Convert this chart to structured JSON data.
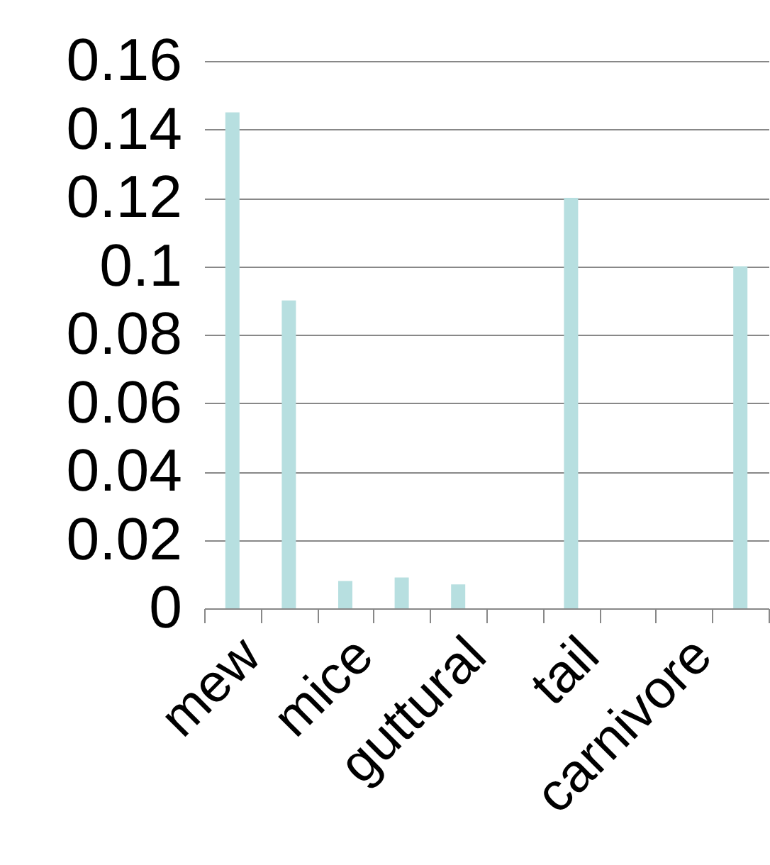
{
  "chart_data": {
    "type": "bar",
    "categories": [
      "mew",
      null,
      "mice",
      null,
      "guttural",
      null,
      "tail",
      null,
      "carnivore",
      null
    ],
    "values": [
      0.145,
      0.09,
      0.008,
      0.009,
      0.007,
      0,
      0.12,
      0,
      0,
      0.1
    ],
    "color": "#b7dfe0",
    "ylim": [
      0,
      0.16
    ],
    "yticks": [
      0,
      0.02,
      0.04,
      0.06,
      0.08,
      0.1,
      0.12,
      0.14,
      0.16
    ],
    "grid": "y"
  }
}
